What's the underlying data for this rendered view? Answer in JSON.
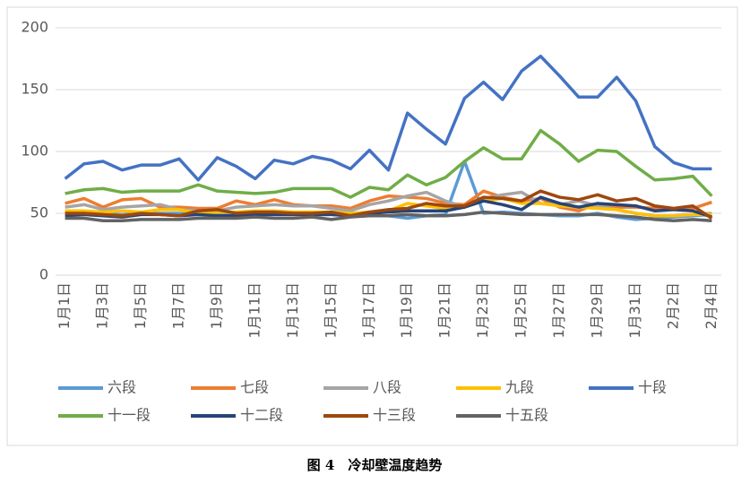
{
  "chart_data": {
    "type": "line",
    "caption": "图 4　冷却壁温度趋势",
    "categories": [
      "1月1日",
      null,
      "1月3日",
      null,
      "1月5日",
      null,
      "1月7日",
      null,
      "1月9日",
      null,
      "1月11日",
      null,
      "1月13日",
      null,
      "1月15日",
      null,
      "1月17日",
      null,
      "1月19日",
      null,
      "1月21日",
      null,
      "1月23日",
      null,
      "1月25日",
      null,
      "1月27日",
      null,
      "1月29日",
      null,
      "1月31日",
      null,
      "2月2日",
      null,
      "2月4日"
    ],
    "ylim": [
      0,
      200
    ],
    "yticks": [
      0,
      50,
      100,
      150,
      200
    ],
    "grid": true,
    "series": [
      {
        "name": "六段",
        "color": "#5b9bd5",
        "values": [
          50,
          50,
          50,
          49,
          50,
          50,
          50,
          49,
          49,
          48,
          49,
          49,
          49,
          49,
          49,
          48,
          48,
          48,
          46,
          48,
          49,
          92,
          50,
          51,
          50,
          49,
          48,
          48,
          50,
          47,
          45,
          46,
          47,
          48,
          49
        ]
      },
      {
        "name": "七段",
        "color": "#ed7d31",
        "values": [
          58,
          62,
          55,
          61,
          62,
          55,
          55,
          54,
          54,
          60,
          57,
          61,
          57,
          56,
          56,
          54,
          60,
          64,
          63,
          62,
          58,
          57,
          68,
          63,
          60,
          62,
          55,
          52,
          58,
          55,
          55,
          54,
          53,
          54,
          59
        ]
      },
      {
        "name": "八段",
        "color": "#a5a5a5",
        "values": [
          55,
          57,
          53,
          55,
          56,
          57,
          53,
          52,
          52,
          55,
          56,
          57,
          56,
          56,
          54,
          52,
          57,
          60,
          64,
          67,
          60,
          55,
          62,
          65,
          67,
          58,
          57,
          60,
          56,
          53,
          50,
          48,
          48,
          49,
          50
        ]
      },
      {
        "name": "九段",
        "color": "#ffc000",
        "values": [
          52,
          52,
          51,
          52,
          51,
          53,
          53,
          50,
          51,
          51,
          52,
          52,
          51,
          51,
          51,
          50,
          51,
          52,
          58,
          56,
          54,
          55,
          60,
          62,
          58,
          58,
          56,
          55,
          54,
          53,
          50,
          48,
          48,
          49,
          49
        ]
      },
      {
        "name": "十段",
        "color": "#4472c4",
        "values": [
          78,
          90,
          92,
          85,
          89,
          89,
          94,
          77,
          95,
          88,
          78,
          93,
          90,
          96,
          93,
          86,
          101,
          85,
          131,
          118,
          106,
          143,
          156,
          142,
          165,
          177,
          161,
          144,
          144,
          160,
          141,
          104,
          91,
          86,
          86
        ]
      },
      {
        "name": "十一段",
        "color": "#70ad47",
        "values": [
          66,
          69,
          70,
          67,
          68,
          68,
          68,
          73,
          68,
          67,
          66,
          67,
          70,
          70,
          70,
          63,
          71,
          69,
          81,
          73,
          79,
          92,
          103,
          94,
          94,
          117,
          106,
          92,
          101,
          100,
          88,
          77,
          78,
          80,
          64
        ]
      },
      {
        "name": "十二段",
        "color": "#264478",
        "values": [
          48,
          49,
          48,
          47,
          49,
          49,
          48,
          49,
          48,
          48,
          49,
          49,
          49,
          49,
          49,
          48,
          50,
          51,
          52,
          52,
          52,
          55,
          60,
          57,
          53,
          63,
          58,
          55,
          58,
          57,
          56,
          52,
          53,
          52,
          47
        ]
      },
      {
        "name": "十三段",
        "color": "#9e480e",
        "values": [
          50,
          50,
          49,
          48,
          50,
          49,
          48,
          52,
          53,
          50,
          51,
          51,
          50,
          50,
          51,
          48,
          51,
          53,
          54,
          58,
          56,
          56,
          63,
          62,
          60,
          68,
          63,
          61,
          65,
          60,
          62,
          56,
          54,
          56,
          46
        ]
      },
      {
        "name": "十五段",
        "color": "#636363",
        "values": [
          46,
          46,
          44,
          44,
          45,
          45,
          45,
          46,
          46,
          46,
          47,
          46,
          46,
          47,
          45,
          47,
          48,
          48,
          49,
          48,
          48,
          49,
          51,
          50,
          49,
          49,
          49,
          49,
          49,
          48,
          47,
          45,
          44,
          45,
          44
        ]
      }
    ]
  }
}
